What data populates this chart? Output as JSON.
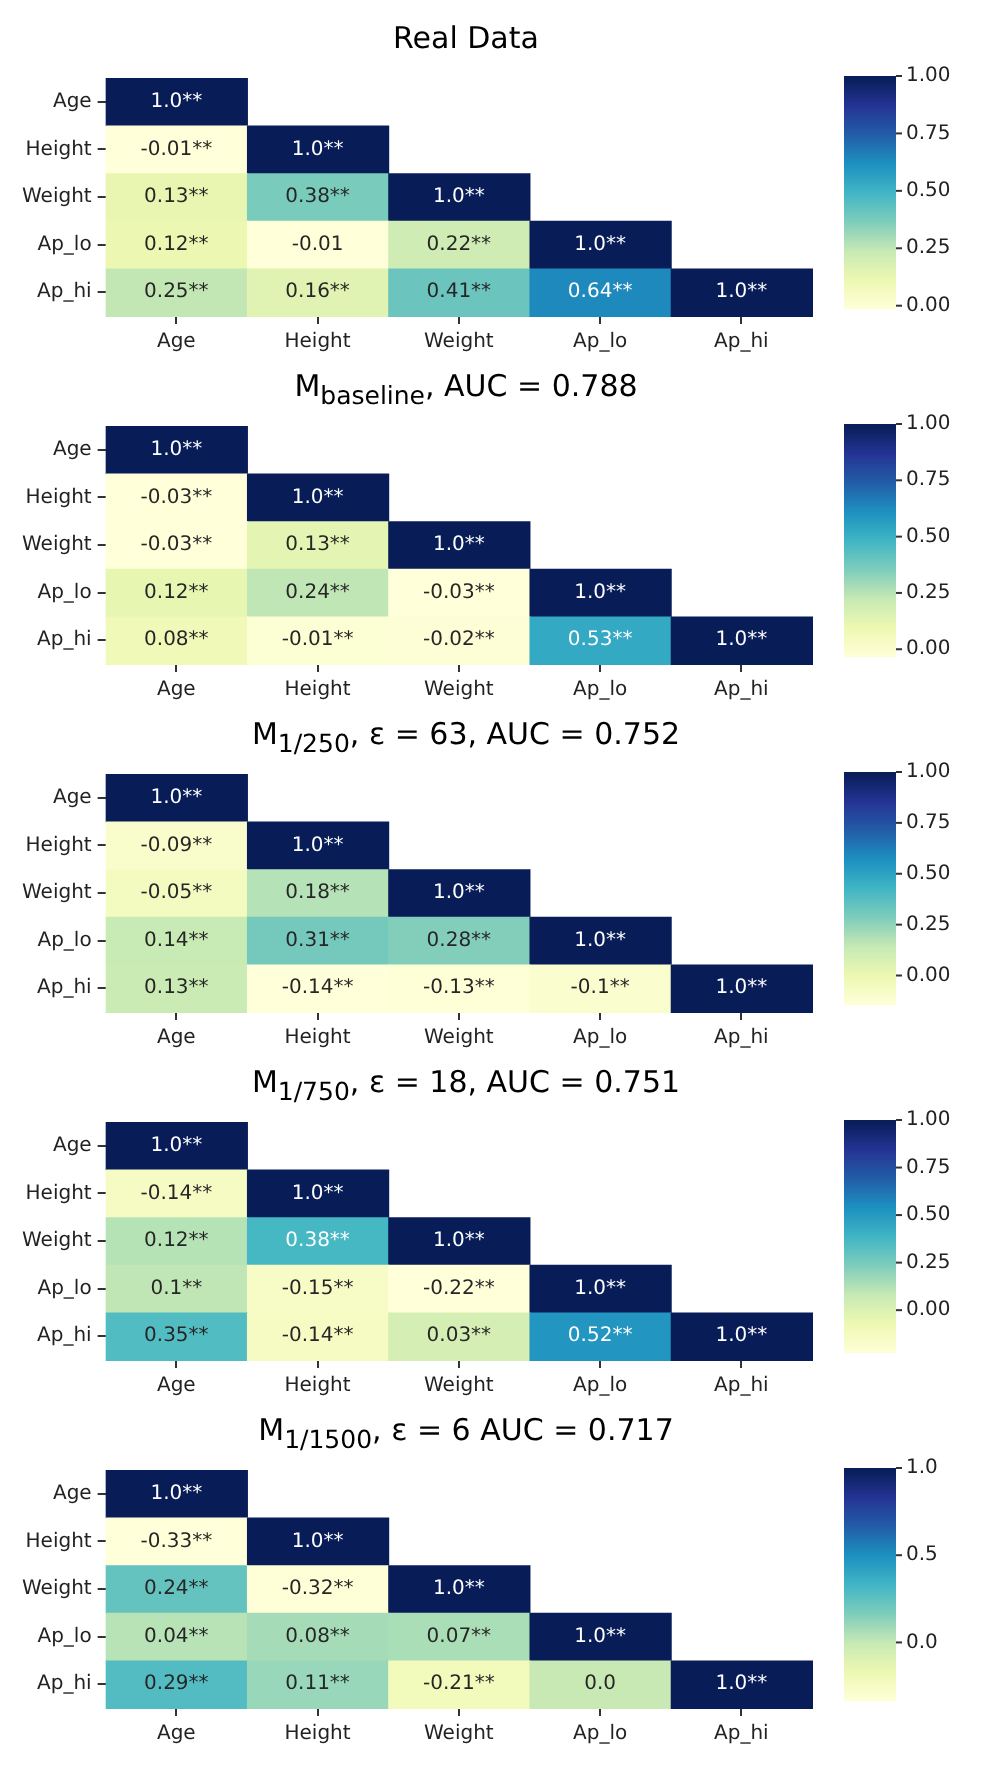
{
  "chart_data": [
    {
      "type": "heatmap",
      "title": "Real Data",
      "categories": [
        "Age",
        "Height",
        "Weight",
        "Ap_lo",
        "Ap_hi"
      ],
      "y_categories": [
        "Age",
        "Height",
        "Weight",
        "Ap_lo",
        "Ap_hi"
      ],
      "cells": [
        [
          1.0,
          null,
          null,
          null,
          null
        ],
        [
          -0.01,
          1.0,
          null,
          null,
          null
        ],
        [
          0.13,
          0.38,
          1.0,
          null,
          null
        ],
        [
          0.12,
          -0.01,
          0.22,
          1.0,
          null
        ],
        [
          0.25,
          0.16,
          0.41,
          0.64,
          1.0
        ]
      ],
      "cell_labels": [
        [
          "1.0**",
          null,
          null,
          null,
          null
        ],
        [
          "-0.01**",
          "1.0**",
          null,
          null,
          null
        ],
        [
          "0.13**",
          "0.38**",
          "1.0**",
          null,
          null
        ],
        [
          "0.12**",
          "-0.01",
          "0.22**",
          "1.0**",
          null
        ],
        [
          "0.25**",
          "0.16**",
          "0.41**",
          "0.64**",
          "1.0**"
        ]
      ],
      "clim": [
        -0.01,
        1.0
      ],
      "cticks": [
        {
          "value": 0,
          "label": "0.00"
        },
        {
          "value": 0.25,
          "label": "0.25"
        },
        {
          "value": 0.5,
          "label": "0.50"
        },
        {
          "value": 0.75,
          "label": "0.75"
        },
        {
          "value": 1,
          "label": "1.00"
        }
      ]
    },
    {
      "type": "heatmap",
      "title": "M$_{baseline}$, AUC = 0.788",
      "categories": [
        "Age",
        "Height",
        "Weight",
        "Ap_lo",
        "Ap_hi"
      ],
      "y_categories": [
        "Age",
        "Height",
        "Weight",
        "Ap_lo",
        "Ap_hi"
      ],
      "cells": [
        [
          1.0,
          null,
          null,
          null,
          null
        ],
        [
          -0.03,
          1.0,
          null,
          null,
          null
        ],
        [
          -0.03,
          0.13,
          1.0,
          null,
          null
        ],
        [
          0.12,
          0.24,
          -0.03,
          1.0,
          null
        ],
        [
          0.08,
          -0.01,
          -0.02,
          0.53,
          1.0
        ]
      ],
      "cell_labels": [
        [
          "1.0**",
          null,
          null,
          null,
          null
        ],
        [
          "-0.03**",
          "1.0**",
          null,
          null,
          null
        ],
        [
          "-0.03**",
          "0.13**",
          "1.0**",
          null,
          null
        ],
        [
          "0.12**",
          "0.24**",
          "-0.03**",
          "1.0**",
          null
        ],
        [
          "0.08**",
          "-0.01**",
          "-0.02**",
          "0.53**",
          "1.0**"
        ]
      ],
      "clim": [
        -0.03,
        1.0
      ],
      "cticks": [
        {
          "value": 0,
          "label": "0.00"
        },
        {
          "value": 0.25,
          "label": "0.25"
        },
        {
          "value": 0.5,
          "label": "0.50"
        },
        {
          "value": 0.75,
          "label": "0.75"
        },
        {
          "value": 1,
          "label": "1.00"
        }
      ]
    },
    {
      "type": "heatmap",
      "title": "M$_{1/250}$, ε = 63, AUC = 0.752",
      "categories": [
        "Age",
        "Height",
        "Weight",
        "Ap_lo",
        "Ap_hi"
      ],
      "y_categories": [
        "Age",
        "Height",
        "Weight",
        "Ap_lo",
        "Ap_hi"
      ],
      "cells": [
        [
          1.0,
          null,
          null,
          null,
          null
        ],
        [
          -0.09,
          1.0,
          null,
          null,
          null
        ],
        [
          -0.05,
          0.18,
          1.0,
          null,
          null
        ],
        [
          0.14,
          0.31,
          0.28,
          1.0,
          null
        ],
        [
          0.13,
          -0.14,
          -0.13,
          -0.1,
          1.0
        ]
      ],
      "cell_labels": [
        [
          "1.0**",
          null,
          null,
          null,
          null
        ],
        [
          "-0.09**",
          "1.0**",
          null,
          null,
          null
        ],
        [
          "-0.05**",
          "0.18**",
          "1.0**",
          null,
          null
        ],
        [
          "0.14**",
          "0.31**",
          "0.28**",
          "1.0**",
          null
        ],
        [
          "0.13**",
          "-0.14**",
          "-0.13**",
          "-0.1**",
          "1.0**"
        ]
      ],
      "clim": [
        -0.14,
        1.0
      ],
      "cticks": [
        {
          "value": 0,
          "label": "0.00"
        },
        {
          "value": 0.25,
          "label": "0.25"
        },
        {
          "value": 0.5,
          "label": "0.50"
        },
        {
          "value": 0.75,
          "label": "0.75"
        },
        {
          "value": 1,
          "label": "1.00"
        }
      ]
    },
    {
      "type": "heatmap",
      "title": "M$_{1/750}$, ε = 18, AUC = 0.751",
      "categories": [
        "Age",
        "Height",
        "Weight",
        "Ap_lo",
        "Ap_hi"
      ],
      "y_categories": [
        "Age",
        "Height",
        "Weight",
        "Ap_lo",
        "Ap_hi"
      ],
      "cells": [
        [
          1.0,
          null,
          null,
          null,
          null
        ],
        [
          -0.14,
          1.0,
          null,
          null,
          null
        ],
        [
          0.12,
          0.38,
          1.0,
          null,
          null
        ],
        [
          0.1,
          -0.15,
          -0.22,
          1.0,
          null
        ],
        [
          0.35,
          -0.14,
          0.03,
          0.52,
          1.0
        ]
      ],
      "cell_labels": [
        [
          "1.0**",
          null,
          null,
          null,
          null
        ],
        [
          "-0.14**",
          "1.0**",
          null,
          null,
          null
        ],
        [
          "0.12**",
          "0.38**",
          "1.0**",
          null,
          null
        ],
        [
          "0.1**",
          "-0.15**",
          "-0.22**",
          "1.0**",
          null
        ],
        [
          "0.35**",
          "-0.14**",
          "0.03**",
          "0.52**",
          "1.0**"
        ]
      ],
      "clim": [
        -0.22,
        1.0
      ],
      "cticks": [
        {
          "value": 0,
          "label": "0.00"
        },
        {
          "value": 0.25,
          "label": "0.25"
        },
        {
          "value": 0.5,
          "label": "0.50"
        },
        {
          "value": 0.75,
          "label": "0.75"
        },
        {
          "value": 1,
          "label": "1.00"
        }
      ]
    },
    {
      "type": "heatmap",
      "title": "M$_{1/1500}$, ε = 6 AUC = 0.717",
      "categories": [
        "Age",
        "Height",
        "Weight",
        "Ap_lo",
        "Ap_hi"
      ],
      "y_categories": [
        "Age",
        "Height",
        "Weight",
        "Ap_lo",
        "Ap_hi"
      ],
      "cells": [
        [
          1.0,
          null,
          null,
          null,
          null
        ],
        [
          -0.33,
          1.0,
          null,
          null,
          null
        ],
        [
          0.24,
          -0.32,
          1.0,
          null,
          null
        ],
        [
          0.04,
          0.08,
          0.07,
          1.0,
          null
        ],
        [
          0.29,
          0.11,
          -0.21,
          0.0,
          1.0
        ]
      ],
      "cell_labels": [
        [
          "1.0**",
          null,
          null,
          null,
          null
        ],
        [
          "-0.33**",
          "1.0**",
          null,
          null,
          null
        ],
        [
          "0.24**",
          "-0.32**",
          "1.0**",
          null,
          null
        ],
        [
          "0.04**",
          "0.08**",
          "0.07**",
          "1.0**",
          null
        ],
        [
          "0.29**",
          "0.11**",
          "-0.21**",
          "0.0",
          "1.0**"
        ]
      ],
      "clim": [
        -0.33,
        1.0
      ],
      "cticks": [
        {
          "value": 0,
          "label": "0.0"
        },
        {
          "value": 0.5,
          "label": "0.5"
        },
        {
          "value": 1,
          "label": "1.0"
        }
      ]
    }
  ]
}
